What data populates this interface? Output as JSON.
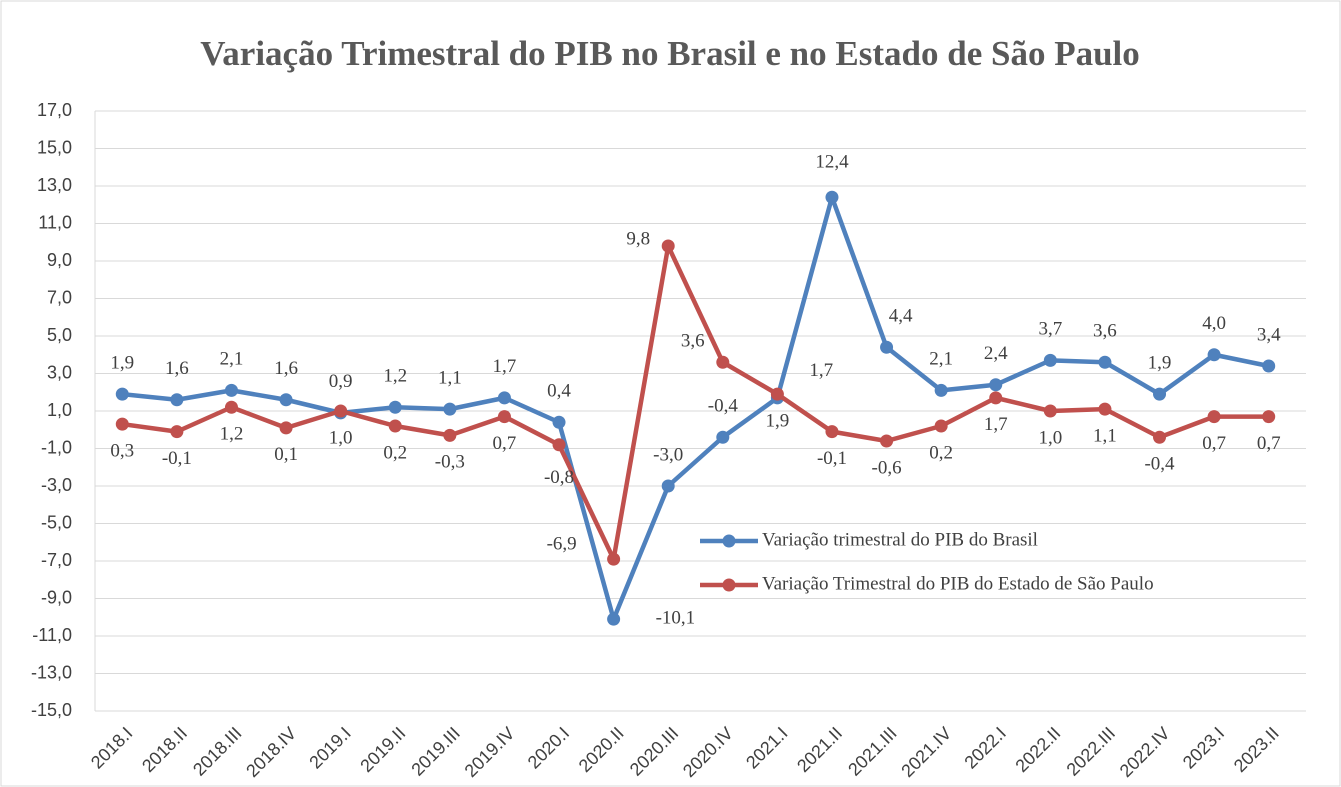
{
  "chart_data": {
    "type": "line",
    "title": "Variação Trimestral do PIB no Brasil e no Estado de São Paulo",
    "categories": [
      "2018.I",
      "2018.II",
      "2018.III",
      "2018.IV",
      "2019.I",
      "2019.II",
      "2019.III",
      "2019.IV",
      "2020.I",
      "2020.II",
      "2020.III",
      "2020.IV",
      "2021.I",
      "2021.II",
      "2021.III",
      "2021.IV",
      "2022.I",
      "2022.II",
      "2022.III",
      "2022.IV",
      "2023.I",
      "2023.II"
    ],
    "series": [
      {
        "name": "Variação trimestral do PIB do Brasil",
        "color": "#4f81bd",
        "values": [
          1.9,
          1.6,
          2.1,
          1.6,
          0.9,
          1.2,
          1.1,
          1.7,
          0.4,
          -10.1,
          -3.0,
          -0.4,
          1.7,
          12.4,
          4.4,
          2.1,
          2.4,
          3.7,
          3.6,
          1.9,
          4.0,
          3.4
        ],
        "value_labels": [
          "1,9",
          "1,6",
          "2,1",
          "1,6",
          "0,9",
          "1,2",
          "1,1",
          "1,7",
          "0,4",
          "-10,1",
          "-3,0",
          "-0,4",
          "1,7",
          "12,4",
          "4,4",
          "2,1",
          "2,4",
          "3,7",
          "3,6",
          "1,9",
          "4,0",
          "3,4"
        ]
      },
      {
        "name": "Variação Trimestral do PIB do Estado de São Paulo",
        "color": "#c0504d",
        "values": [
          0.3,
          -0.1,
          1.2,
          0.1,
          1.0,
          0.2,
          -0.3,
          0.7,
          -0.8,
          -6.9,
          9.8,
          3.6,
          1.9,
          -0.1,
          -0.6,
          0.2,
          1.7,
          1.0,
          1.1,
          -0.4,
          0.7,
          0.7
        ],
        "value_labels": [
          "0,3",
          "-0,1",
          "1,2",
          "0,1",
          "1,0",
          "0,2",
          "-0,3",
          "0,7",
          "-0,8",
          "-6,9",
          "9,8",
          "3,6",
          "1,9",
          "-0,1",
          "-0,6",
          "0,2",
          "1,7",
          "1,0",
          "1,1",
          "-0,4",
          "0,7",
          "0,7"
        ]
      }
    ],
    "ylim": [
      -15,
      17
    ],
    "yticks": [
      {
        "value": -15,
        "label": "-15,0"
      },
      {
        "value": -13,
        "label": "-13,0"
      },
      {
        "value": -11,
        "label": "-11,0"
      },
      {
        "value": -9,
        "label": "-9,0"
      },
      {
        "value": -7,
        "label": "-7,0"
      },
      {
        "value": -5,
        "label": "-5,0"
      },
      {
        "value": -3,
        "label": "-3,0"
      },
      {
        "value": -1,
        "label": "-1,0"
      },
      {
        "value": 1,
        "label": "1,0"
      },
      {
        "value": 3,
        "label": "3,0"
      },
      {
        "value": 5,
        "label": "5,0"
      },
      {
        "value": 7,
        "label": "7,0"
      },
      {
        "value": 9,
        "label": "9,0"
      },
      {
        "value": 11,
        "label": "11,0"
      },
      {
        "value": 13,
        "label": "13,0"
      },
      {
        "value": 15,
        "label": "15,0"
      },
      {
        "value": 17,
        "label": "17,0"
      }
    ],
    "grid": true,
    "legend": "right"
  }
}
